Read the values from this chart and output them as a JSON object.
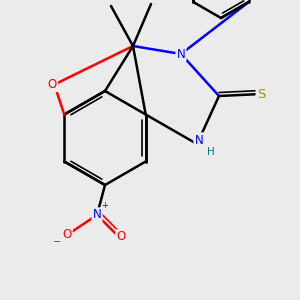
{
  "background_color": "#ebebeb",
  "atom_colors": {
    "O": "#ff0000",
    "N": "#0000ff",
    "S": "#999900",
    "C": "#000000",
    "H": "#008080"
  },
  "figsize": [
    3.0,
    3.0
  ],
  "dpi": 100
}
